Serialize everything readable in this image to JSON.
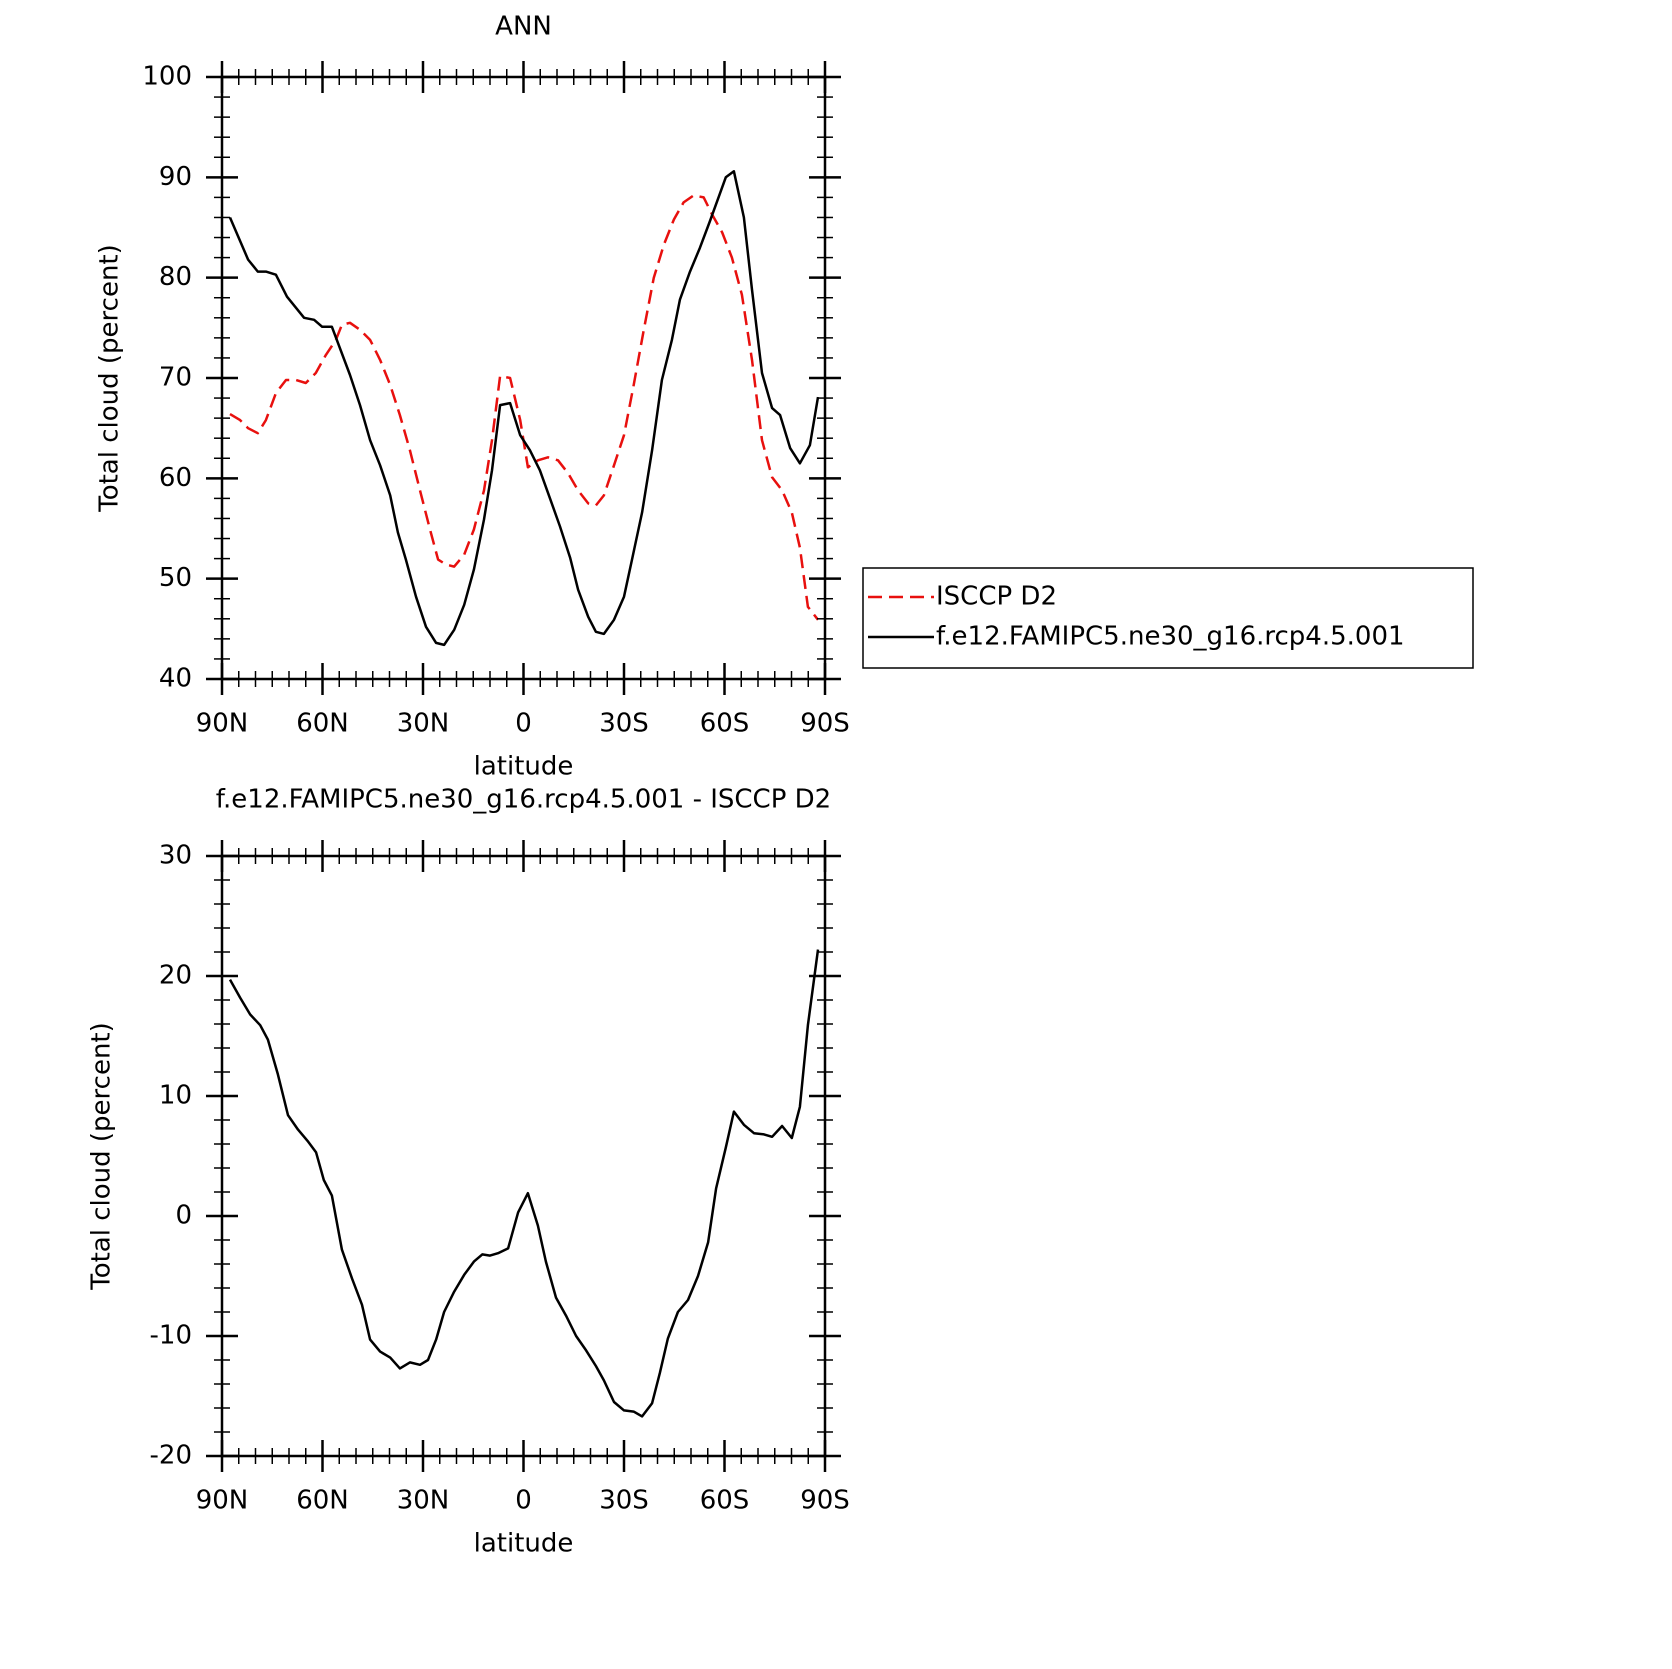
{
  "chart_data": [
    {
      "type": "line",
      "title": "ANN",
      "xlabel": "latitude",
      "ylabel": "Total cloud (percent)",
      "xlim": [
        90,
        -90
      ],
      "xticks": [
        {
          "value": 90,
          "label": "90N"
        },
        {
          "value": 60,
          "label": "60N"
        },
        {
          "value": 30,
          "label": "30N"
        },
        0,
        {
          "value": -30,
          "label": "30S"
        },
        {
          "value": -60,
          "label": "60S"
        },
        {
          "value": -90,
          "label": "90S"
        }
      ],
      "ylim": [
        40,
        100
      ],
      "yticks": [
        40,
        50,
        60,
        70,
        80,
        90,
        100
      ],
      "legend": "right",
      "series": [
        {
          "name": "ISCCP D2",
          "color": "#e8100e",
          "dash": true,
          "x": [
            87.6,
            84.6,
            82.2,
            79.3,
            76.9,
            73.9,
            70.9,
            67.9,
            65.0,
            62.0,
            59.0,
            56.0,
            54.2,
            51.8,
            48.8,
            45.8,
            42.8,
            39.8,
            36.9,
            33.9,
            30.9,
            27.9,
            25.5,
            23.1,
            20.7,
            17.7,
            14.8,
            11.8,
            9.4,
            7.0,
            4.0,
            1.0,
            -1.3,
            -4.3,
            -7.3,
            -10.3,
            -13.3,
            -16.3,
            -19.3,
            -21.6,
            -24.0,
            -27.0,
            -30.0,
            -32.9,
            -35.9,
            -38.9,
            -41.9,
            -44.9,
            -47.8,
            -50.8,
            -53.8,
            -56.3,
            -59.3,
            -62.2,
            -65.2,
            -68.2,
            -71.2,
            -74.2,
            -77.2,
            -80.1,
            -82.5,
            -84.9,
            -87.9
          ],
          "values": [
            66.4,
            65.8,
            65.0,
            64.5,
            65.8,
            68.5,
            69.8,
            69.8,
            69.5,
            70.5,
            72.3,
            73.8,
            75.3,
            75.5,
            74.8,
            73.8,
            71.8,
            69.3,
            66.3,
            62.8,
            58.8,
            54.9,
            51.9,
            51.4,
            51.2,
            52.4,
            54.9,
            58.8,
            63.8,
            70.2,
            70.0,
            65.8,
            61.1,
            61.8,
            62.1,
            61.8,
            60.5,
            58.8,
            57.5,
            57.3,
            58.3,
            61.3,
            64.3,
            69.3,
            74.8,
            80.0,
            83.3,
            85.8,
            87.5,
            88.2,
            88.0,
            86.3,
            84.5,
            82.0,
            78.3,
            71.8,
            63.8,
            60.1,
            58.8,
            56.6,
            53.1,
            47.2,
            45.9
          ]
        },
        {
          "name": "f.e12.FAMIPC5.ne30_g16.rcp4.5.001",
          "color": "#000000",
          "dash": false,
          "x": [
            87.6,
            82.2,
            79.3,
            76.9,
            73.9,
            70.6,
            65.5,
            62.5,
            60.1,
            57.2,
            51.8,
            48.8,
            45.8,
            42.8,
            39.8,
            37.5,
            35.1,
            32.1,
            29.1,
            26.1,
            23.7,
            20.7,
            17.7,
            14.8,
            11.8,
            9.4,
            7.0,
            4.0,
            1.0,
            -1.9,
            -4.9,
            -7.9,
            -10.9,
            -13.9,
            -16.3,
            -19.3,
            -21.6,
            -24.0,
            -27.0,
            -30.0,
            -32.4,
            -35.4,
            -38.4,
            -41.3,
            -44.3,
            -46.7,
            -49.7,
            -52.7,
            -55.6,
            -58.0,
            -60.4,
            -62.8,
            -65.8,
            -68.2,
            -71.2,
            -74.2,
            -76.6,
            -79.6,
            -82.5,
            -85.5,
            -87.9
          ],
          "values": [
            86.0,
            81.8,
            80.6,
            80.6,
            80.3,
            78.1,
            76.0,
            75.8,
            75.1,
            75.1,
            70.3,
            67.3,
            63.8,
            61.3,
            58.3,
            54.6,
            51.9,
            48.2,
            45.2,
            43.6,
            43.4,
            44.9,
            47.4,
            50.9,
            55.9,
            60.8,
            67.3,
            67.5,
            64.3,
            62.8,
            60.8,
            58.0,
            55.2,
            52.1,
            48.9,
            46.2,
            44.7,
            44.5,
            45.9,
            48.2,
            51.9,
            56.6,
            62.8,
            69.8,
            73.8,
            77.8,
            80.6,
            83.0,
            85.6,
            87.8,
            90.0,
            90.6,
            86.0,
            78.8,
            70.5,
            67.0,
            66.3,
            63.0,
            61.5,
            63.3,
            68.1
          ]
        }
      ]
    },
    {
      "type": "line",
      "title": "f.e12.FAMIPC5.ne30_g16.rcp4.5.001 - ISCCP D2",
      "xlabel": "latitude",
      "ylabel": "Total cloud (percent)",
      "xlim": [
        90,
        -90
      ],
      "xticks": [
        {
          "value": 90,
          "label": "90N"
        },
        {
          "value": 60,
          "label": "60N"
        },
        {
          "value": 30,
          "label": "30N"
        },
        0,
        {
          "value": -30,
          "label": "30S"
        },
        {
          "value": -60,
          "label": "60S"
        },
        {
          "value": -90,
          "label": "90S"
        }
      ],
      "ylim": [
        -20,
        30
      ],
      "yticks": [
        -20,
        -10,
        0,
        10,
        20,
        30
      ],
      "color": "#000000",
      "x": [
        87.6,
        84.6,
        81.6,
        78.6,
        76.3,
        73.3,
        70.3,
        67.3,
        64.3,
        61.9,
        59.6,
        57.2,
        54.2,
        51.2,
        48.2,
        45.8,
        42.8,
        39.8,
        36.9,
        33.9,
        30.9,
        28.5,
        26.1,
        23.7,
        20.7,
        17.7,
        14.8,
        12.3,
        10.0,
        7.6,
        4.6,
        1.6,
        -1.3,
        -4.3,
        -6.7,
        -9.7,
        -12.7,
        -15.7,
        -18.7,
        -21.6,
        -24.0,
        -27.0,
        -30.0,
        -32.9,
        -35.4,
        -38.4,
        -40.7,
        -43.1,
        -46.1,
        -49.1,
        -52.1,
        -55.1,
        -57.5,
        -60.4,
        -62.8,
        -65.8,
        -68.8,
        -71.8,
        -74.2,
        -77.2,
        -80.1,
        -82.5,
        -84.9,
        -87.9
      ],
      "values": [
        19.7,
        18.2,
        16.8,
        15.9,
        14.7,
        11.8,
        8.4,
        7.2,
        6.2,
        5.3,
        3.0,
        1.7,
        -2.8,
        -5.2,
        -7.4,
        -10.3,
        -11.3,
        -11.8,
        -12.7,
        -12.2,
        -12.4,
        -12.0,
        -10.3,
        -8.0,
        -6.3,
        -4.9,
        -3.8,
        -3.2,
        -3.3,
        -3.1,
        -2.7,
        0.3,
        1.9,
        -0.8,
        -3.8,
        -6.8,
        -8.3,
        -10.0,
        -11.2,
        -12.5,
        -13.7,
        -15.5,
        -16.2,
        -16.3,
        -16.7,
        -15.6,
        -13.1,
        -10.2,
        -8.0,
        -7.0,
        -5.0,
        -2.2,
        2.3,
        5.7,
        8.7,
        7.6,
        6.9,
        6.8,
        6.6,
        7.5,
        6.5,
        9.1,
        15.9,
        22.2
      ]
    }
  ]
}
